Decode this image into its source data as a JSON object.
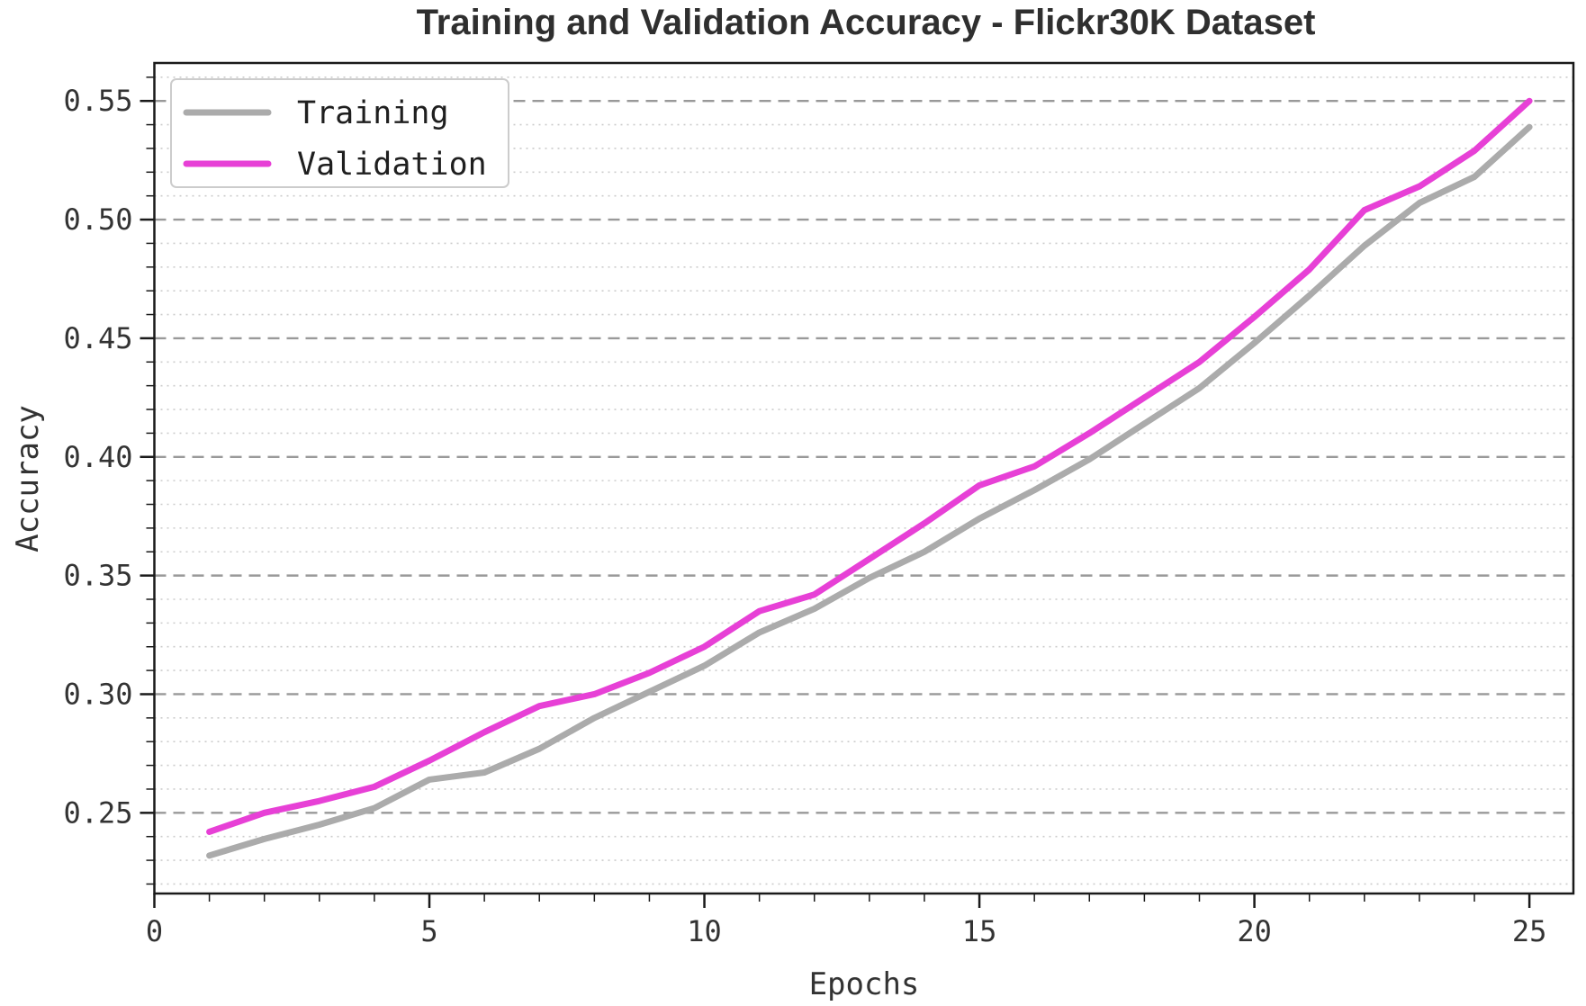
{
  "chart_data": {
    "type": "line",
    "title": "Training and Validation Accuracy - Flickr30K Dataset",
    "xlabel": "Epochs",
    "ylabel": "Accuracy",
    "x": [
      1,
      2,
      3,
      4,
      5,
      6,
      7,
      8,
      9,
      10,
      11,
      12,
      13,
      14,
      15,
      16,
      17,
      18,
      19,
      20,
      21,
      22,
      23,
      24,
      25
    ],
    "series": [
      {
        "name": "Training",
        "color": "#ababab",
        "values": [
          0.232,
          0.239,
          0.245,
          0.252,
          0.264,
          0.267,
          0.277,
          0.29,
          0.301,
          0.312,
          0.326,
          0.336,
          0.349,
          0.36,
          0.374,
          0.386,
          0.399,
          0.414,
          0.429,
          0.448,
          0.468,
          0.489,
          0.507,
          0.518,
          0.539
        ]
      },
      {
        "name": "Validation",
        "color": "#e740d6",
        "values": [
          0.242,
          0.25,
          0.255,
          0.261,
          0.272,
          0.284,
          0.295,
          0.3,
          0.309,
          0.32,
          0.335,
          0.342,
          0.357,
          0.372,
          0.388,
          0.396,
          0.41,
          0.425,
          0.44,
          0.459,
          0.479,
          0.504,
          0.514,
          0.529,
          0.55
        ]
      }
    ],
    "xlim": [
      0,
      25.8
    ],
    "ylim": [
      0.216,
      0.566
    ],
    "xticks": {
      "major": [
        0,
        5,
        10,
        15,
        20,
        25
      ],
      "minor_start": 1,
      "minor_end": 25,
      "minor_step": 1
    },
    "yticks": {
      "major": [
        0.25,
        0.3,
        0.35,
        0.4,
        0.45,
        0.5,
        0.55
      ],
      "minor_start": 0.22,
      "minor_end": 0.56,
      "minor_step": 0.01,
      "decimals": 2
    },
    "grid": {
      "horizontal": true,
      "vertical": false,
      "major_style": "dashed",
      "minor_style": "dotted"
    },
    "legend": {
      "position": "upper-left",
      "entries": [
        "Training",
        "Validation"
      ]
    },
    "line_width": 7
  },
  "colors": {
    "background": "#ffffff",
    "title": "#2f2f2f",
    "tick_text": "#333333",
    "axis_spine": "#1a1a1a",
    "major_grid": "#999999",
    "minor_grid": "#cccccc",
    "legend_border": "#cccccc",
    "legend_bg": "#ffffff",
    "legend_text": "#1f1f1f"
  }
}
